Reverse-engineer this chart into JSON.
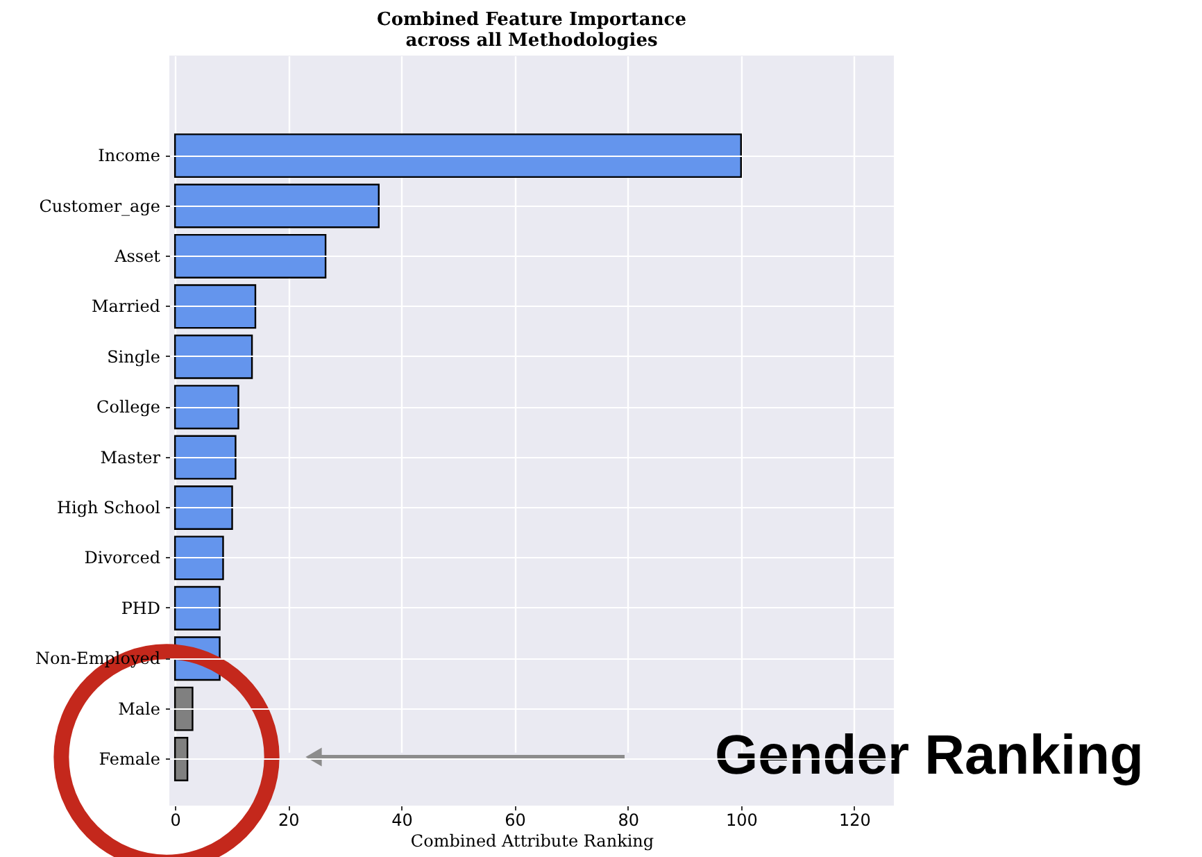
{
  "chart_data": {
    "type": "bar",
    "orientation": "horizontal",
    "title": "Combined Feature Importance\nacross all Methodologies",
    "xlabel": "Combined Attribute Ranking",
    "categories": [
      "Income",
      "Customer_age",
      "Asset",
      "Married",
      "Single",
      "College",
      "Master",
      "High School",
      "Divorced",
      "PHD",
      "Non-Employed",
      "Male",
      "Female"
    ],
    "values": [
      100,
      36,
      26.6,
      14.2,
      13.6,
      11.2,
      10.7,
      10.1,
      8.5,
      7.9,
      7.9,
      3.1,
      2.2
    ],
    "colors": [
      "#6495ed",
      "#6495ed",
      "#6495ed",
      "#6495ed",
      "#6495ed",
      "#6495ed",
      "#6495ed",
      "#6495ed",
      "#6495ed",
      "#6495ed",
      "#6495ed",
      "#808080",
      "#808080"
    ],
    "xlim": [
      -1,
      127
    ],
    "xticks": [
      0,
      20,
      40,
      60,
      80,
      100,
      120
    ],
    "grid": true,
    "annotations": [
      "Gender Ranking"
    ]
  }
}
